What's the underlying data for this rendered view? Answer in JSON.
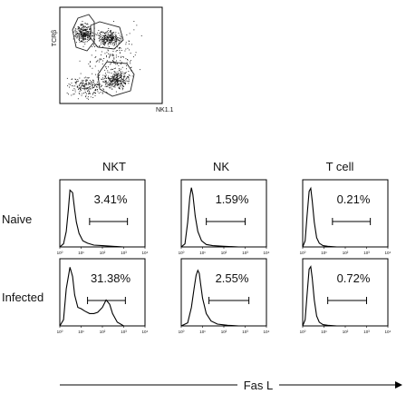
{
  "dot_plot": {
    "y_label": "TCRβ",
    "x_label": "NK1.1"
  },
  "columns": [
    "NKT",
    "NK",
    "T cell"
  ],
  "rows": [
    "Naive",
    "Infected"
  ],
  "x_axis_label": "Fas L",
  "tick_labels": [
    "10⁰",
    "10¹",
    "10²",
    "10³",
    "10⁴"
  ],
  "panels": [
    {
      "row": "Naive",
      "column": "NKT",
      "percent": "3.41%"
    },
    {
      "row": "Naive",
      "column": "NK",
      "percent": "1.59%"
    },
    {
      "row": "Naive",
      "column": "T cell",
      "percent": "0.21%"
    },
    {
      "row": "Infected",
      "column": "NKT",
      "percent": "31.38%"
    },
    {
      "row": "Infected",
      "column": "NK",
      "percent": "2.55%"
    },
    {
      "row": "Infected",
      "column": "T cell",
      "percent": "0.72%"
    }
  ],
  "chart_data": {
    "type": "line",
    "x_scale": "log",
    "xlim": [
      1,
      10000
    ],
    "xlabel": "Fas L",
    "series": [
      {
        "row": "Naive",
        "column": "NKT",
        "x": [
          1.5,
          2,
          2.5,
          3,
          4,
          5,
          6,
          8,
          12,
          20,
          40,
          100,
          300,
          1000
        ],
        "y": [
          0.05,
          0.25,
          0.6,
          0.92,
          0.88,
          0.6,
          0.4,
          0.22,
          0.1,
          0.06,
          0.03,
          0.02,
          0.01,
          0
        ]
      },
      {
        "row": "Naive",
        "column": "NK",
        "x": [
          1.5,
          2,
          2.5,
          3,
          3.5,
          4.5,
          6,
          9,
          15,
          30,
          100,
          500
        ],
        "y": [
          0.05,
          0.4,
          0.8,
          0.96,
          0.85,
          0.5,
          0.25,
          0.1,
          0.04,
          0.02,
          0.01,
          0
        ]
      },
      {
        "row": "Naive",
        "column": "T cell",
        "x": [
          1.3,
          1.6,
          2,
          2.4,
          2.8,
          3.5,
          4.5,
          6,
          9,
          15,
          40
        ],
        "y": [
          0.1,
          0.5,
          0.9,
          0.95,
          0.75,
          0.4,
          0.15,
          0.06,
          0.02,
          0.01,
          0
        ]
      },
      {
        "row": "Infected",
        "column": "NKT",
        "x": [
          1.5,
          2,
          3,
          4,
          5,
          7,
          10,
          15,
          25,
          40,
          60,
          100,
          150,
          220,
          300,
          500,
          1000
        ],
        "y": [
          0.1,
          0.6,
          0.95,
          0.8,
          0.5,
          0.3,
          0.28,
          0.24,
          0.2,
          0.2,
          0.22,
          0.3,
          0.42,
          0.35,
          0.2,
          0.06,
          0
        ]
      },
      {
        "row": "Infected",
        "column": "NK",
        "x": [
          2,
          3,
          4,
          5,
          6,
          7,
          8,
          10,
          15,
          25,
          50,
          150,
          500
        ],
        "y": [
          0.05,
          0.3,
          0.6,
          0.82,
          0.9,
          0.85,
          0.7,
          0.45,
          0.2,
          0.08,
          0.03,
          0.01,
          0
        ]
      },
      {
        "row": "Infected",
        "column": "T cell",
        "x": [
          1.3,
          1.6,
          2,
          2.4,
          2.8,
          3.5,
          4.5,
          6,
          9,
          15,
          40
        ],
        "y": [
          0.1,
          0.5,
          0.92,
          0.96,
          0.78,
          0.42,
          0.16,
          0.06,
          0.02,
          0.01,
          0
        ]
      }
    ],
    "gates": [
      {
        "row": "Naive",
        "column": "NKT",
        "x_range": [
          25,
          1500
        ]
      },
      {
        "row": "Naive",
        "column": "NK",
        "x_range": [
          15,
          1000
        ]
      },
      {
        "row": "Naive",
        "column": "T cell",
        "x_range": [
          25,
          1500
        ]
      },
      {
        "row": "Infected",
        "column": "NKT",
        "x_range": [
          20,
          1200
        ]
      },
      {
        "row": "Infected",
        "column": "NK",
        "x_range": [
          20,
          1500
        ]
      },
      {
        "row": "Infected",
        "column": "T cell",
        "x_range": [
          15,
          1000
        ]
      }
    ]
  }
}
